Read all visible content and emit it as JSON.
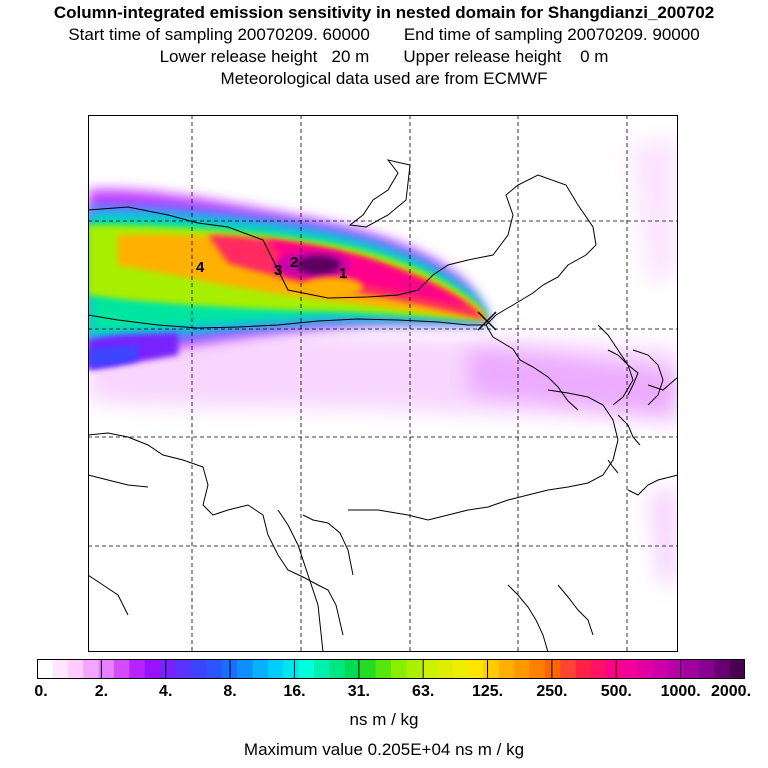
{
  "title": {
    "main": "Column-integrated emission sensitivity in nested domain for Shangdianzi_200702",
    "start_time": "Start time of sampling 20070209. 60000",
    "end_time": "End time of sampling 20070209. 90000",
    "lower_height": "Lower release height   20 m",
    "upper_height": "Upper release height    0 m",
    "met_data": "Meteorological data used are from ECMWF"
  },
  "map": {
    "markers": [
      {
        "label": "1"
      },
      {
        "label": "2"
      },
      {
        "label": "3"
      },
      {
        "label": "4"
      }
    ],
    "release_site_icon": "cross-marker-icon"
  },
  "colorbar": {
    "labels": [
      "0.",
      "2.",
      "4.",
      "8.",
      "16.",
      "31.",
      "63.",
      "125.",
      "250.",
      "500.",
      "1000.",
      "2000."
    ],
    "colors": [
      "#ffffff",
      "#ffe6ff",
      "#ffccff",
      "#f2a6ff",
      "#e680ff",
      "#d24dff",
      "#b822ff",
      "#9a10ff",
      "#7722ff",
      "#5a33ff",
      "#3c44ff",
      "#2a55ff",
      "#1a6fff",
      "#0f8fff",
      "#08b0ff",
      "#00ccff",
      "#00e6ee",
      "#00ffdd",
      "#00f0b0",
      "#00e680",
      "#00dd55",
      "#22dd22",
      "#55e611",
      "#88ee00",
      "#aaf000",
      "#ccf200",
      "#ddee00",
      "#eeee00",
      "#ffe600",
      "#ffcc00",
      "#ffb000",
      "#ff9900",
      "#ff8000",
      "#ff6600",
      "#ff4433",
      "#ff2244",
      "#ff1166",
      "#ff0088",
      "#f20099",
      "#e000a0",
      "#cc00a8",
      "#b800a8",
      "#a000a0",
      "#880090",
      "#6a0070",
      "#4a0050"
    ],
    "units": "ns m / kg",
    "max_value": "Maximum value  0.205E+04 ns m / kg"
  }
}
